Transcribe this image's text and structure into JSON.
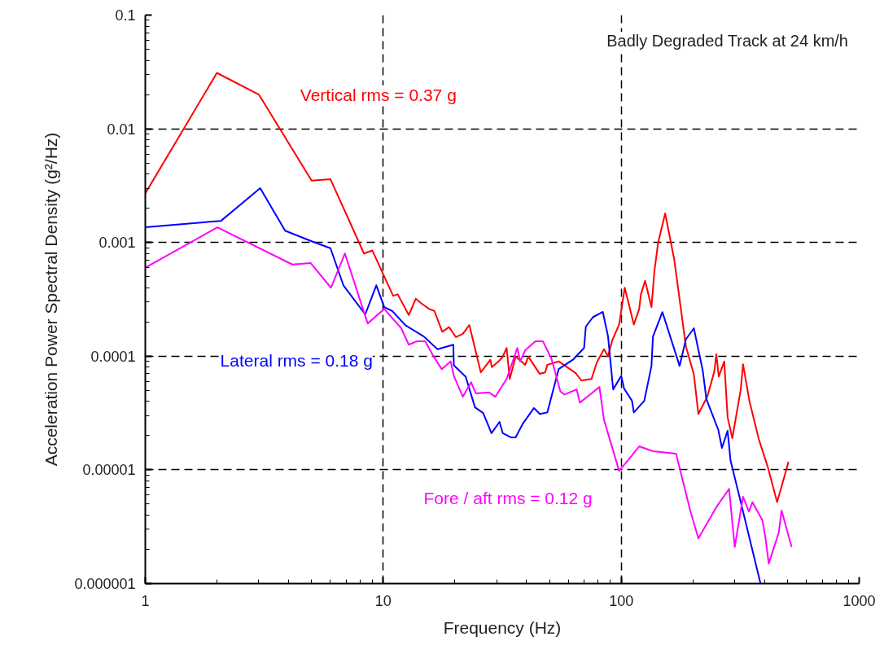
{
  "chart_data": {
    "type": "line",
    "xlabel": "Frequency (Hz)",
    "ylabel": "Acceleration Power Spectral Density (g²/Hz)",
    "annotations": [
      "Badly Degraded Track at 24 km/h"
    ],
    "log": "xy",
    "grid": true,
    "marker": "none",
    "line_style": "solid",
    "xlim": [
      1,
      1000
    ],
    "xticks": [
      1,
      10,
      100,
      1000
    ],
    "ylim": [
      1e-06,
      0.1
    ],
    "yticks": [
      {
        "value": 1e-06,
        "label": "0.000001"
      },
      {
        "value": 1e-05,
        "label": "0.00001"
      },
      {
        "value": 0.0001,
        "label": "0.0001"
      },
      {
        "value": 0.001,
        "label": "0.001"
      },
      {
        "value": 0.01,
        "label": "0.01"
      },
      {
        "value": 0.1,
        "label": "0.1"
      }
    ],
    "series": [
      {
        "name": "Vertical rms = 0.37 g",
        "color": "#ff0000",
        "x": [
          1,
          2,
          3,
          5,
          6,
          8.3,
          9,
          11,
          11.5,
          12.8,
          13.7,
          14.5,
          15.6,
          16.4,
          17.7,
          18.9,
          20.2,
          21.6,
          23,
          25.7,
          28.2,
          28.6,
          30.5,
          31.7,
          33,
          34,
          36,
          37.8,
          39.5,
          40.7,
          45.4,
          47.9,
          48.9,
          54.6,
          64.4,
          68,
          75,
          79,
          84.6,
          88,
          91.6,
          98,
          103.5,
          113,
          119,
          121,
          126,
          134,
          138,
          143,
          153,
          167,
          187,
          202,
          211,
          230,
          246,
          251,
          257,
          271,
          280,
          293,
          318,
          325,
          346,
          379,
          413,
          452,
          505
        ],
        "values": [
          0.0027,
          0.031,
          0.02,
          0.0035,
          0.0036,
          0.0008,
          0.00085,
          0.00034,
          0.00035,
          0.00023,
          0.00032,
          0.00029,
          0.00026,
          0.00025,
          0.000164,
          0.00018,
          0.000147,
          0.000157,
          0.000188,
          7.2e-05,
          9.3e-05,
          8e-05,
          9e-05,
          9.8e-05,
          0.000118,
          6.3e-05,
          9.9e-05,
          9.1e-05,
          8.4e-05,
          9.9e-05,
          7e-05,
          7.2e-05,
          8.4e-05,
          9e-05,
          7.1e-05,
          6.1e-05,
          6.3e-05,
          8.8e-05,
          0.000115,
          0.0001,
          0.000137,
          0.00019,
          0.0004,
          0.00019,
          0.00026,
          0.00035,
          0.00046,
          0.00027,
          0.00057,
          0.001,
          0.0018,
          0.00071,
          0.000122,
          6.9e-05,
          3.1e-05,
          4.4e-05,
          7.3e-05,
          0.000104,
          6.6e-05,
          9e-05,
          2.9e-05,
          1.9e-05,
          5.1e-05,
          8.5e-05,
          4e-05,
          1.85e-05,
          1.06e-05,
          5.2e-06,
          1.18e-05
        ]
      },
      {
        "name": "Lateral rms = 0.18 g",
        "color": "#0000ff",
        "x": [
          1,
          2.08,
          3.04,
          3.87,
          5.03,
          6,
          6.8,
          8.4,
          9.35,
          10.1,
          10.9,
          12.4,
          14.8,
          16.9,
          19.7,
          19.8,
          22.2,
          24.3,
          26.3,
          28.5,
          30.8,
          31.8,
          34.5,
          36,
          38.6,
          43,
          45.5,
          48.9,
          54.6,
          63,
          69.8,
          71,
          76,
          83.7,
          88,
          92.5,
          100,
          102.8,
          111,
          113,
          125,
          134,
          136,
          149,
          176,
          187,
          202,
          220,
          228,
          256,
          265,
          280,
          288,
          316,
          385
        ],
        "values": [
          0.00136,
          0.00155,
          0.003,
          0.00127,
          0.00102,
          0.00089,
          0.00042,
          0.000233,
          0.00042,
          0.00027,
          0.00025,
          0.000187,
          0.000149,
          0.000115,
          0.000126,
          8.3e-05,
          6.6e-05,
          3.55e-05,
          3.16e-05,
          2.1e-05,
          2.64e-05,
          2.1e-05,
          1.93e-05,
          1.93e-05,
          2.55e-05,
          3.5e-05,
          3.1e-05,
          3.2e-05,
          7.7e-05,
          9.4e-05,
          0.000118,
          0.000182,
          0.00022,
          0.000245,
          0.00015,
          5.1e-05,
          6.7e-05,
          5.2e-05,
          4.05e-05,
          3.2e-05,
          4.05e-05,
          8.2e-05,
          0.000149,
          0.000244,
          8.2e-05,
          0.000141,
          0.000176,
          7.5e-05,
          4.2e-05,
          2.24e-05,
          1.56e-05,
          2.21e-05,
          1.21e-05,
          5.5e-06,
          1e-06
        ]
      },
      {
        "name": "Fore / aft rms = 0.12 g",
        "color": "#ff00ff",
        "x": [
          1,
          2.01,
          4.15,
          4.95,
          6.03,
          6.9,
          8.6,
          10.1,
          11.9,
          12.8,
          13.8,
          15,
          16.3,
          17.6,
          19.2,
          19.8,
          21.6,
          23.4,
          24.5,
          27.8,
          29.6,
          33,
          36.6,
          37.6,
          39.5,
          43.6,
          46.9,
          51,
          55.5,
          57.7,
          65,
          67,
          73,
          81,
          84.6,
          98,
          109,
          119,
          136,
          170,
          195,
          211,
          251,
          284,
          300,
          325,
          344,
          356,
          392,
          403,
          417,
          459,
          472,
          520
        ],
        "values": [
          0.0006,
          0.00136,
          0.00064,
          0.00066,
          0.0004,
          0.0008,
          0.000194,
          0.00026,
          0.000176,
          0.000126,
          0.000135,
          0.000135,
          9.9e-05,
          7.7e-05,
          9e-05,
          6.7e-05,
          4.4e-05,
          5.9e-05,
          4.7e-05,
          4.8e-05,
          4.4e-05,
          6.3e-05,
          0.000118,
          9e-05,
          0.000113,
          0.000135,
          0.000135,
          9.4e-05,
          4.9e-05,
          4.6e-05,
          5.1e-05,
          3.9e-05,
          4.5e-05,
          5.36e-05,
          2.77e-05,
          9.8e-06,
          1.28e-05,
          1.61e-05,
          1.46e-05,
          1.39e-05,
          4.4e-06,
          2.5e-06,
          4.7e-06,
          6.8e-06,
          2.1e-06,
          5.8e-06,
          4.3e-06,
          5.2e-06,
          3.6e-06,
          2.6e-06,
          1.5e-06,
          2.8e-06,
          4.4e-06,
          2.1e-06
        ]
      }
    ]
  }
}
